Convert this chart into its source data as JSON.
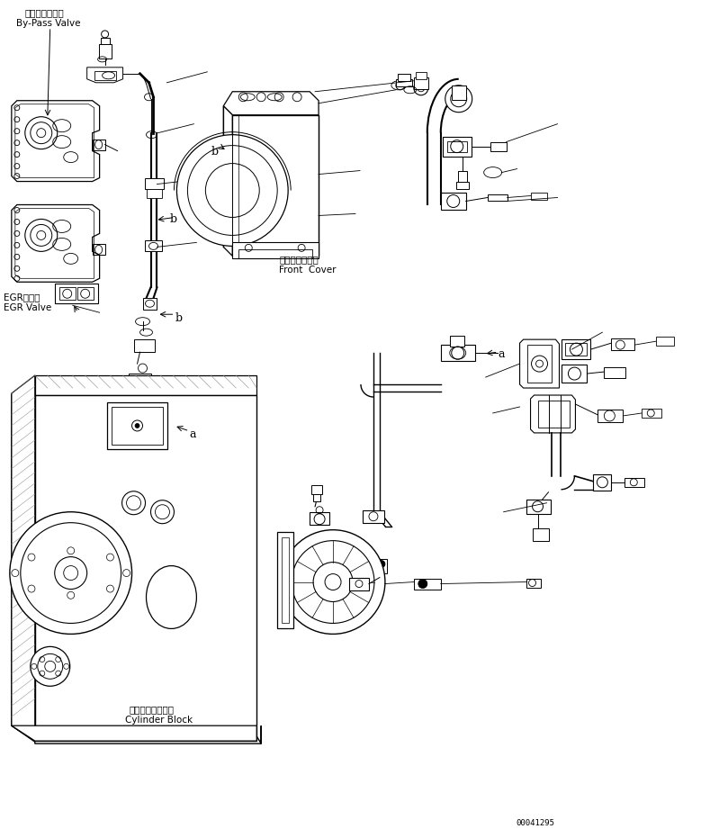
{
  "background_color": "#ffffff",
  "line_color": "#000000",
  "part_number": "00041295",
  "labels": {
    "bypass_valve_jp": "バイパスバルブ",
    "bypass_valve_en": "By-Pass Valve",
    "egr_valve_jp": "EGRバルブ",
    "egr_valve_en": "EGR Valve",
    "front_cover_jp": "フロントカバー",
    "front_cover_en": "Front  Cover",
    "cylinder_block_jp": "シリンダブロック",
    "cylinder_block_en": "Cylinder Block"
  },
  "fig_width": 7.79,
  "fig_height": 9.21,
  "dpi": 100
}
